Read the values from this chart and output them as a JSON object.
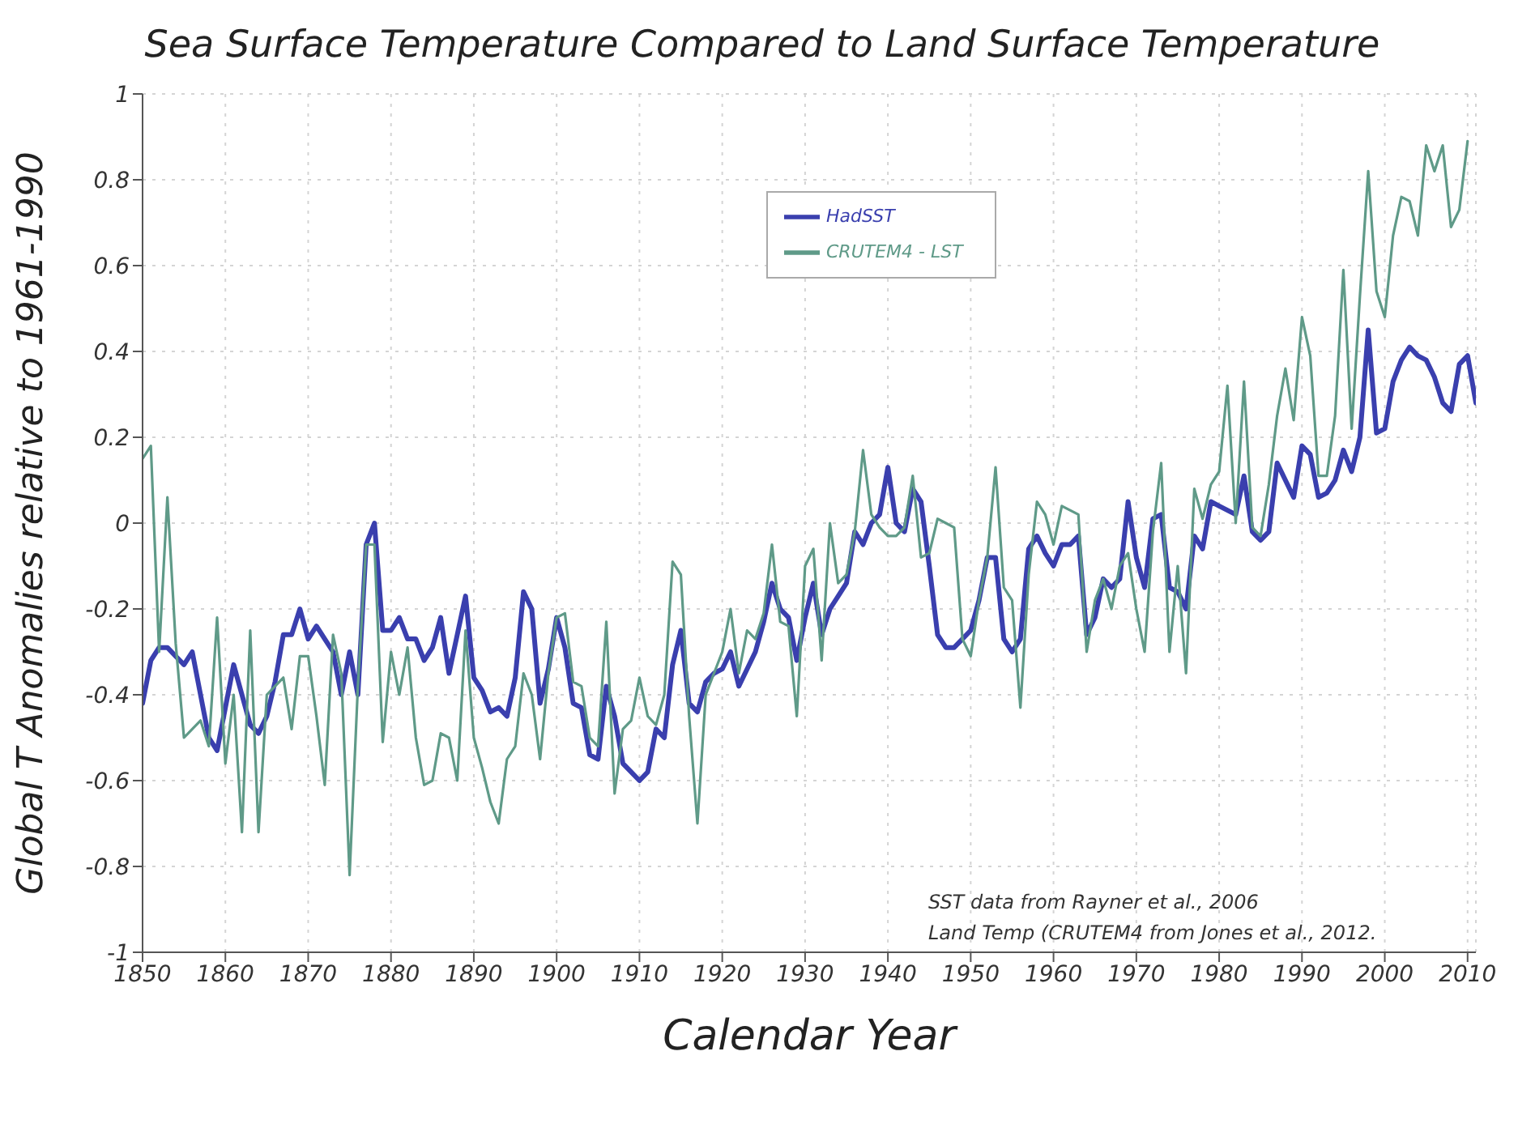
{
  "chart_data": {
    "type": "line",
    "title": "Sea Surface Temperature Compared to Land Surface Temperature",
    "xlabel": "Calendar Year",
    "ylabel": "Global T Anomalies relative to 1961-1990",
    "x": [
      1850,
      1851,
      1852,
      1853,
      1854,
      1855,
      1856,
      1857,
      1858,
      1859,
      1860,
      1861,
      1862,
      1863,
      1864,
      1865,
      1866,
      1867,
      1868,
      1869,
      1870,
      1871,
      1872,
      1873,
      1874,
      1875,
      1876,
      1877,
      1878,
      1879,
      1880,
      1881,
      1882,
      1883,
      1884,
      1885,
      1886,
      1887,
      1888,
      1889,
      1890,
      1891,
      1892,
      1893,
      1894,
      1895,
      1896,
      1897,
      1898,
      1899,
      1900,
      1901,
      1902,
      1903,
      1904,
      1905,
      1906,
      1907,
      1908,
      1909,
      1910,
      1911,
      1912,
      1913,
      1914,
      1915,
      1916,
      1917,
      1918,
      1919,
      1920,
      1921,
      1922,
      1923,
      1924,
      1925,
      1926,
      1927,
      1928,
      1929,
      1930,
      1931,
      1932,
      1933,
      1934,
      1935,
      1936,
      1937,
      1938,
      1939,
      1940,
      1941,
      1942,
      1943,
      1944,
      1945,
      1946,
      1947,
      1948,
      1949,
      1950,
      1951,
      1952,
      1953,
      1954,
      1955,
      1956,
      1957,
      1958,
      1959,
      1960,
      1961,
      1962,
      1963,
      1964,
      1965,
      1966,
      1967,
      1968,
      1969,
      1970,
      1971,
      1972,
      1973,
      1974,
      1975,
      1976,
      1977,
      1978,
      1979,
      1980,
      1981,
      1982,
      1983,
      1984,
      1985,
      1986,
      1987,
      1988,
      1989,
      1990,
      1991,
      1992,
      1993,
      1994,
      1995,
      1996,
      1997,
      1998,
      1999,
      2000,
      2001,
      2002,
      2003,
      2004,
      2005,
      2006,
      2007,
      2008,
      2009,
      2010,
      2011
    ],
    "series": [
      {
        "name": "HadSST",
        "color": "#3a3fae",
        "values": [
          -0.42,
          -0.32,
          -0.29,
          -0.29,
          -0.31,
          -0.33,
          -0.3,
          -0.4,
          -0.5,
          -0.53,
          -0.43,
          -0.33,
          -0.4,
          -0.47,
          -0.49,
          -0.45,
          -0.37,
          -0.26,
          -0.26,
          -0.2,
          -0.27,
          -0.24,
          -0.27,
          -0.3,
          -0.4,
          -0.3,
          -0.4,
          -0.05,
          0.0,
          -0.25,
          -0.25,
          -0.22,
          -0.27,
          -0.27,
          -0.32,
          -0.29,
          -0.22,
          -0.35,
          -0.26,
          -0.17,
          -0.36,
          -0.39,
          -0.44,
          -0.43,
          -0.45,
          -0.36,
          -0.16,
          -0.2,
          -0.42,
          -0.34,
          -0.22,
          -0.29,
          -0.42,
          -0.43,
          -0.54,
          -0.55,
          -0.38,
          -0.45,
          -0.56,
          -0.58,
          -0.6,
          -0.58,
          -0.48,
          -0.5,
          -0.33,
          -0.25,
          -0.42,
          -0.44,
          -0.37,
          -0.35,
          -0.34,
          -0.3,
          -0.38,
          -0.34,
          -0.3,
          -0.23,
          -0.14,
          -0.2,
          -0.22,
          -0.32,
          -0.22,
          -0.14,
          -0.26,
          -0.2,
          -0.17,
          -0.14,
          -0.02,
          -0.05,
          0.0,
          0.02,
          0.13,
          0.0,
          -0.02,
          0.08,
          0.05,
          -0.1,
          -0.26,
          -0.29,
          -0.29,
          -0.27,
          -0.25,
          -0.18,
          -0.08,
          -0.08,
          -0.27,
          -0.3,
          -0.27,
          -0.06,
          -0.03,
          -0.07,
          -0.1,
          -0.05,
          -0.05,
          -0.03,
          -0.26,
          -0.22,
          -0.13,
          -0.15,
          -0.13,
          0.05,
          -0.08,
          -0.15,
          0.01,
          0.02,
          -0.15,
          -0.16,
          -0.2,
          -0.03,
          -0.06,
          0.05,
          0.04,
          0.03,
          0.02,
          0.11,
          -0.02,
          -0.04,
          -0.02,
          0.14,
          0.1,
          0.06,
          0.18,
          0.16,
          0.06,
          0.07,
          0.1,
          0.17,
          0.12,
          0.2,
          0.45,
          0.21,
          0.22,
          0.33,
          0.38,
          0.41,
          0.39,
          0.38,
          0.34,
          0.28,
          0.26,
          0.37,
          0.39,
          0.28
        ]
      },
      {
        "name": "CRUTEM4 - LST",
        "color": "#5f9a88",
        "values": [
          0.15,
          0.18,
          -0.3,
          0.06,
          -0.28,
          -0.5,
          -0.48,
          -0.46,
          -0.52,
          -0.22,
          -0.56,
          -0.4,
          -0.72,
          -0.25,
          -0.72,
          -0.4,
          -0.38,
          -0.36,
          -0.48,
          -0.31,
          -0.31,
          -0.45,
          -0.61,
          -0.26,
          -0.35,
          -0.82,
          -0.38,
          -0.05,
          -0.05,
          -0.51,
          -0.3,
          -0.4,
          -0.29,
          -0.5,
          -0.61,
          -0.6,
          -0.49,
          -0.5,
          -0.6,
          -0.25,
          -0.5,
          -0.57,
          -0.65,
          -0.7,
          -0.55,
          -0.52,
          -0.35,
          -0.4,
          -0.55,
          -0.35,
          -0.22,
          -0.21,
          -0.37,
          -0.38,
          -0.5,
          -0.52,
          -0.23,
          -0.63,
          -0.48,
          -0.46,
          -0.36,
          -0.45,
          -0.47,
          -0.4,
          -0.09,
          -0.12,
          -0.45,
          -0.7,
          -0.4,
          -0.35,
          -0.3,
          -0.2,
          -0.35,
          -0.25,
          -0.27,
          -0.21,
          -0.05,
          -0.23,
          -0.24,
          -0.45,
          -0.1,
          -0.06,
          -0.32,
          0.0,
          -0.14,
          -0.12,
          -0.02,
          0.17,
          0.02,
          -0.01,
          -0.03,
          -0.03,
          -0.01,
          0.11,
          -0.08,
          -0.07,
          0.01,
          0.0,
          -0.01,
          -0.27,
          -0.31,
          -0.18,
          -0.08,
          0.13,
          -0.15,
          -0.18,
          -0.43,
          -0.12,
          0.05,
          0.02,
          -0.05,
          0.04,
          0.03,
          0.02,
          -0.3,
          -0.18,
          -0.13,
          -0.2,
          -0.1,
          -0.07,
          -0.2,
          -0.3,
          -0.02,
          0.14,
          -0.3,
          -0.1,
          -0.35,
          0.08,
          0.01,
          0.09,
          0.12,
          0.32,
          0.0,
          0.33,
          -0.01,
          -0.03,
          0.09,
          0.25,
          0.36,
          0.24,
          0.48,
          0.39,
          0.11,
          0.11,
          0.25,
          0.59,
          0.22,
          0.53,
          0.82,
          0.54,
          0.48,
          0.67,
          0.76,
          0.75,
          0.67,
          0.88,
          0.82,
          0.88,
          0.69,
          0.73,
          0.89,
          null
        ]
      }
    ],
    "xlim": [
      1850,
      2011
    ],
    "xticks": [
      1850,
      1860,
      1870,
      1880,
      1890,
      1900,
      1910,
      1920,
      1930,
      1940,
      1950,
      1960,
      1970,
      1980,
      1990,
      2000,
      2010
    ],
    "ylim": [
      -1,
      1
    ],
    "yticks": [
      -1,
      -0.8,
      -0.6,
      -0.4,
      -0.2,
      0,
      0.2,
      0.4,
      0.6,
      0.8,
      1
    ],
    "grid": true,
    "legend": "top",
    "marker": "none",
    "line_style": "solid",
    "annotations": [
      "SST data from Rayner et al., 2006",
      "Land Temp (CRUTEM4 from Jones et al., 2012."
    ]
  }
}
